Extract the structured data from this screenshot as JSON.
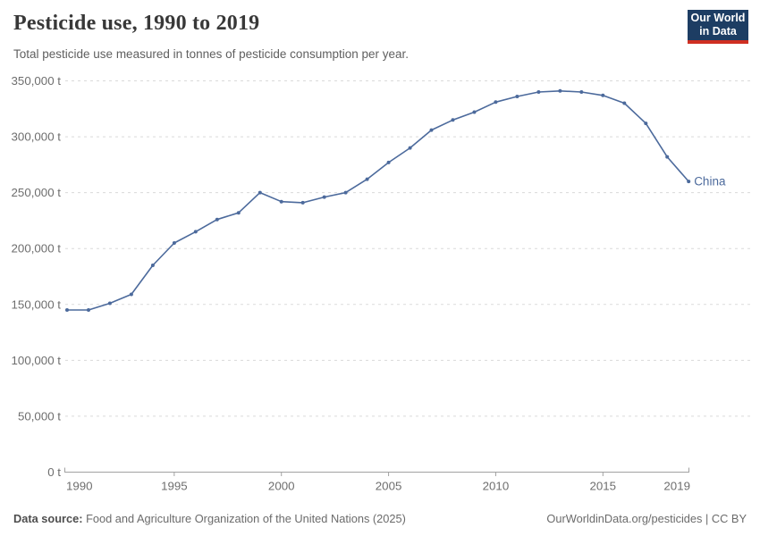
{
  "header": {
    "title": "Pesticide use, 1990 to 2019",
    "subtitle": "Total pesticide use measured in tonnes of pesticide consumption per year.",
    "logo": {
      "line1": "Our World",
      "line2": "in Data",
      "bg_color": "#1d3d63",
      "accent_color": "#cf2f22"
    }
  },
  "chart_data": {
    "type": "line",
    "title": "Pesticide use, 1990 to 2019",
    "xlabel": "",
    "ylabel": "",
    "x": [
      1990,
      1991,
      1992,
      1993,
      1994,
      1995,
      1996,
      1997,
      1998,
      1999,
      2000,
      2001,
      2002,
      2003,
      2004,
      2005,
      2006,
      2007,
      2008,
      2009,
      2010,
      2011,
      2012,
      2013,
      2014,
      2015,
      2016,
      2017,
      2018,
      2019
    ],
    "series": [
      {
        "name": "China",
        "color": "#4c6a9c",
        "values": [
          145000,
          145000,
          151000,
          159000,
          185000,
          205000,
          215000,
          226000,
          232000,
          250000,
          242000,
          241000,
          246000,
          250000,
          262000,
          277000,
          290000,
          306000,
          315000,
          322000,
          331000,
          336000,
          340000,
          341000,
          340000,
          337000,
          330000,
          312000,
          282000,
          260000
        ]
      }
    ],
    "xlim": [
      1990,
      2019
    ],
    "ylim": [
      0,
      350000
    ],
    "xticks": [
      1990,
      1995,
      2000,
      2005,
      2010,
      2015,
      2019
    ],
    "xtick_labels": [
      "1990",
      "1995",
      "2000",
      "2005",
      "2010",
      "2015",
      "2019"
    ],
    "yticks": [
      0,
      50000,
      100000,
      150000,
      200000,
      250000,
      300000,
      350000
    ],
    "ytick_labels": [
      "0 t",
      "50,000 t",
      "100,000 t",
      "150,000 t",
      "200,000 t",
      "250,000 t",
      "300,000 t",
      "350,000 t"
    ],
    "grid": "horizontal-dashed",
    "legend_position": "line-end-label",
    "entity_label": "China"
  },
  "colors": {
    "line": "#4c6a9c",
    "gridline": "#dadada",
    "axis": "#a1a1a1",
    "tick_text": "#6e6e6e"
  },
  "footer": {
    "source_label": "Data source:",
    "source_text": " Food and Agriculture Organization of the United Nations (2025)",
    "attribution": "OurWorldinData.org/pesticides | CC BY"
  }
}
